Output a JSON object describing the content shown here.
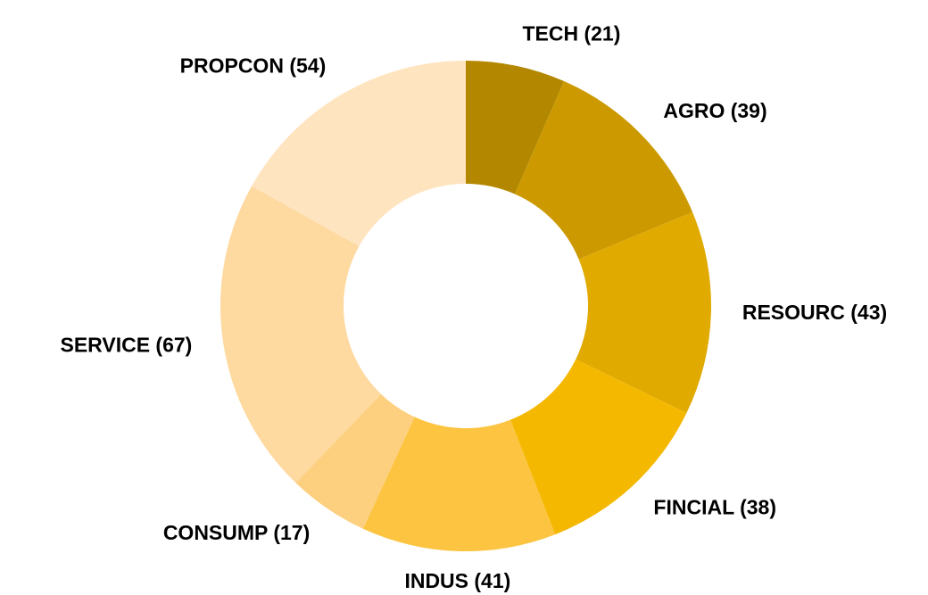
{
  "chart_data": {
    "type": "donut",
    "categories": [
      "TECH (21)",
      "AGRO (39)",
      "RESOURC (43)",
      "FINCIAL (38)",
      "INDUS (41)",
      "CONSUMP (17)",
      "SERVICE (67)",
      "PROPCON (54)"
    ],
    "values": [
      21,
      39,
      43,
      38,
      41,
      17,
      67,
      54
    ],
    "colors": [
      "#b38800",
      "#cc9a00",
      "#e0aa00",
      "#f5b800",
      "#fcc440",
      "#fdd080",
      "#fed9a0",
      "#ffe4c0"
    ]
  }
}
